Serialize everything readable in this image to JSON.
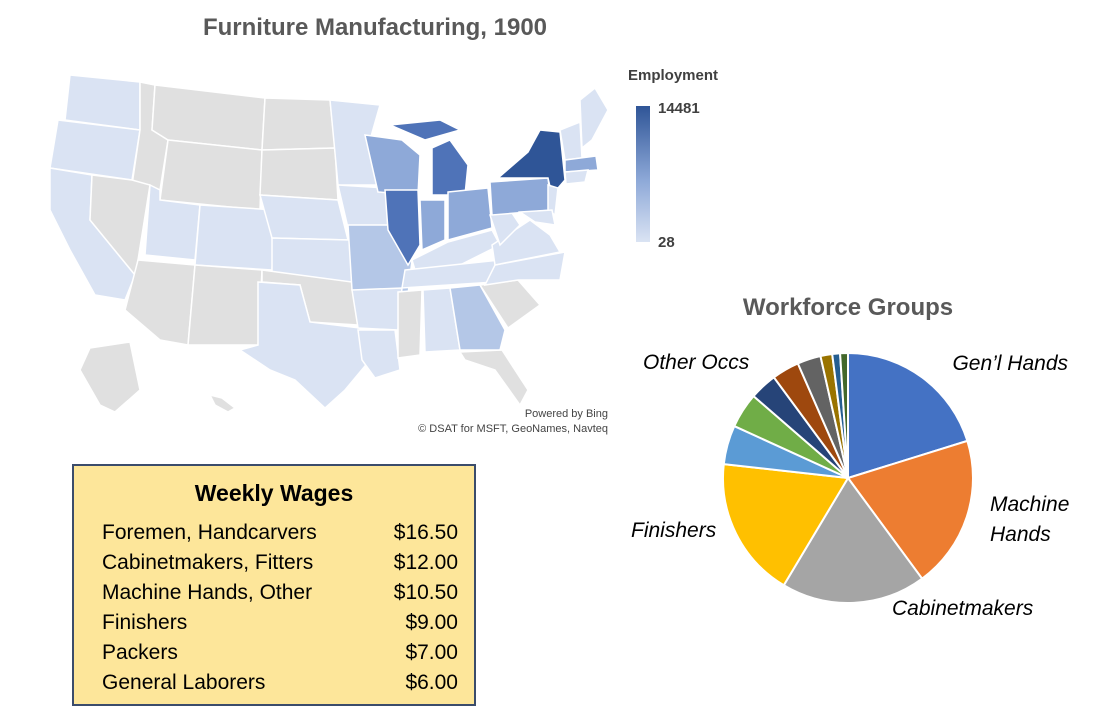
{
  "map": {
    "title": "Furniture Manufacturing, 1900",
    "legend": {
      "title": "Employment",
      "max": "14481",
      "min": "28"
    },
    "attribution": [
      "Powered by Bing",
      "© DSAT for MSFT, GeoNames, Navteq"
    ],
    "colors": {
      "high": "#2f5597",
      "mid": "#8ea9d8",
      "low": "#dae3f3",
      "nodata": "#e0e0e0"
    }
  },
  "wages": {
    "title": "Weekly Wages",
    "rows": [
      {
        "label": "Foremen, Handcarvers",
        "value": "$16.50"
      },
      {
        "label": "Cabinetmakers, Fitters",
        "value": "$12.00"
      },
      {
        "label": "Machine Hands, Other",
        "value": "$10.50"
      },
      {
        "label": "Finishers",
        "value": "$9.00"
      },
      {
        "label": "Packers",
        "value": "$7.00"
      },
      {
        "label": "General Laborers",
        "value": "$6.00"
      }
    ]
  },
  "chart_data": {
    "type": "pie",
    "title": "Workforce Groups",
    "slices": [
      {
        "label": "Gen’l Hands",
        "value": 20,
        "color": "#4472c4"
      },
      {
        "label": "Machine Hands",
        "value": 19.5,
        "color": "#ed7d31"
      },
      {
        "label": "Cabinetmakers",
        "value": 18.5,
        "color": "#a5a5a5"
      },
      {
        "label": "Finishers",
        "value": 18,
        "color": "#ffc000"
      },
      {
        "label": "",
        "value": 5,
        "color": "#5b9bd5"
      },
      {
        "label": "",
        "value": 4.5,
        "color": "#70ad47"
      },
      {
        "label": "",
        "value": 3.5,
        "color": "#264478"
      },
      {
        "label": "",
        "value": 3.5,
        "color": "#9e480e"
      },
      {
        "label": "",
        "value": 3,
        "color": "#636363"
      },
      {
        "label": "",
        "value": 1.5,
        "color": "#997300"
      },
      {
        "label": "",
        "value": 1,
        "color": "#255e91"
      },
      {
        "label": "",
        "value": 1,
        "color": "#43682b"
      }
    ],
    "labels_shown": [
      "Gen’l Hands",
      "Machine Hands",
      "Cabinetmakers",
      "Finishers",
      "Other Occs"
    ]
  }
}
